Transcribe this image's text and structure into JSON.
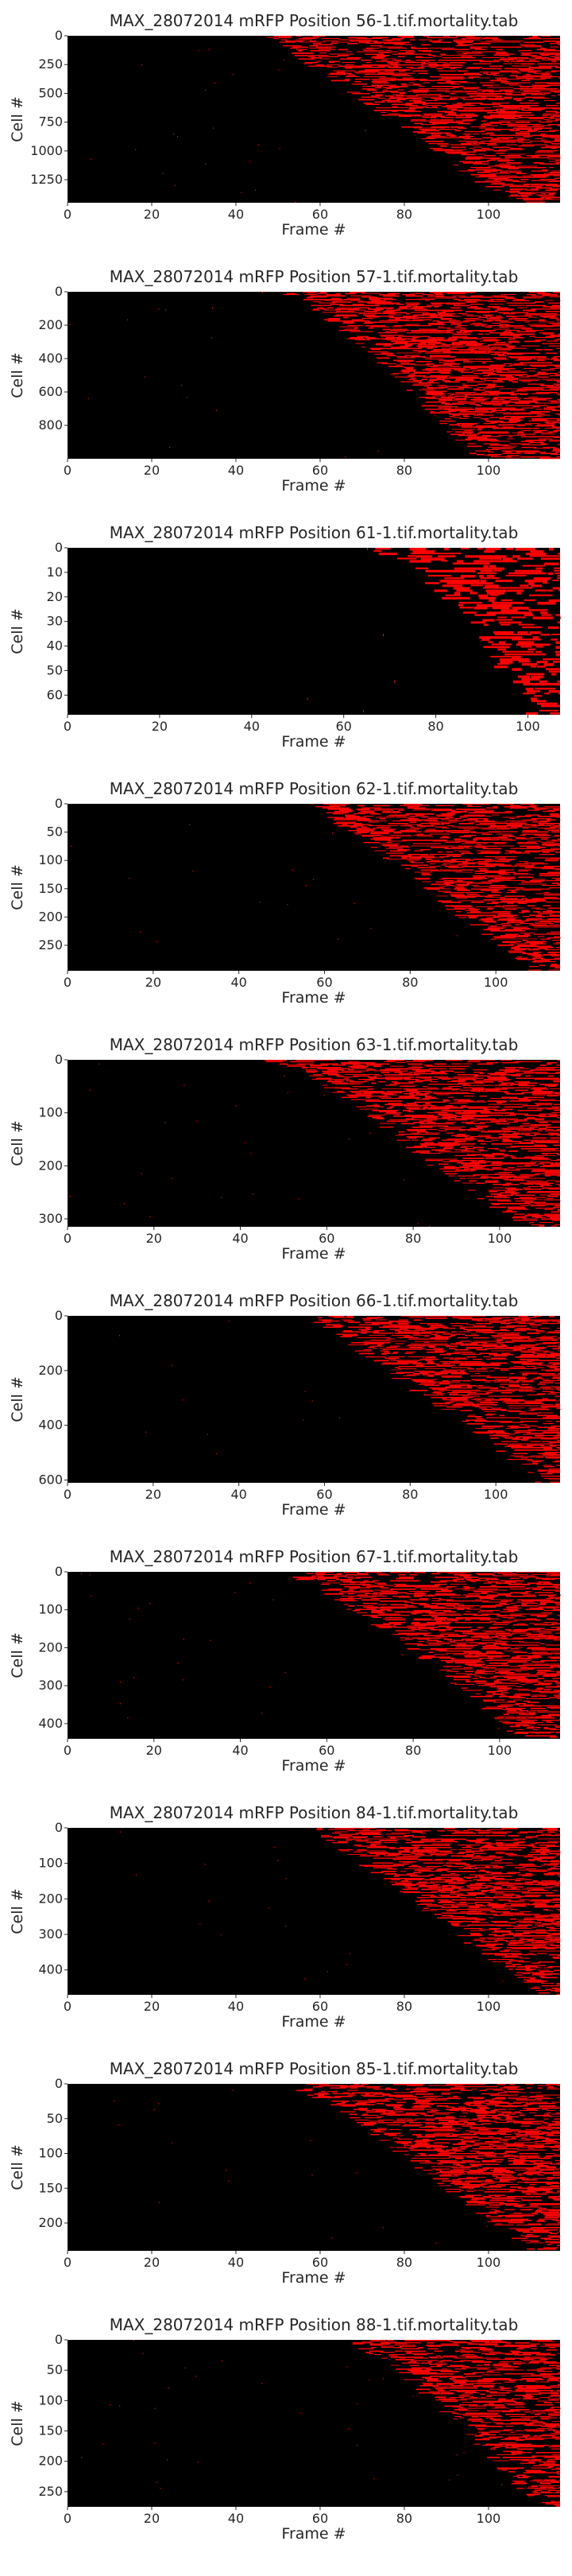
{
  "figure": {
    "background": "#ffffff",
    "plot_background": "#000000",
    "event_color": "#ff0000"
  },
  "chart_data": [
    {
      "type": "heatmap",
      "title": "MAX_28072014 mRFP Position 56-1.tif.mortality.tab",
      "xlabel": "Frame #",
      "ylabel": "Cell #",
      "xlim": [
        0,
        117
      ],
      "ylim": [
        1450,
        0
      ],
      "xticks": [
        0,
        20,
        40,
        60,
        80,
        100
      ],
      "yticks": [
        0,
        250,
        500,
        750,
        1000,
        1250
      ],
      "onset": [
        [
          0,
          47
        ],
        [
          0.1,
          55
        ],
        [
          0.35,
          70
        ],
        [
          0.6,
          85
        ],
        [
          0.85,
          98
        ],
        [
          1,
          108
        ]
      ]
    },
    {
      "type": "heatmap",
      "title": "MAX_28072014 mRFP Position 57-1.tif.mortality.tab",
      "xlabel": "Frame #",
      "ylabel": "Cell #",
      "xlim": [
        0,
        117
      ],
      "ylim": [
        1000,
        0
      ],
      "xticks": [
        0,
        20,
        40,
        60,
        80,
        100
      ],
      "yticks": [
        0,
        200,
        400,
        600,
        800
      ],
      "onset": [
        [
          0,
          53
        ],
        [
          0.15,
          63
        ],
        [
          0.4,
          75
        ],
        [
          0.65,
          86
        ],
        [
          0.85,
          92
        ],
        [
          1,
          100
        ]
      ]
    },
    {
      "type": "heatmap",
      "title": "MAX_28072014 mRFP Position 61-1.tif.mortality.tab",
      "xlabel": "Frame #",
      "ylabel": "Cell #",
      "xlim": [
        0,
        107
      ],
      "ylim": [
        68,
        0
      ],
      "xticks": [
        0,
        20,
        40,
        60,
        80,
        100
      ],
      "yticks": [
        0,
        10,
        20,
        30,
        40,
        50,
        60
      ],
      "onset": [
        [
          0,
          68
        ],
        [
          0.2,
          80
        ],
        [
          0.45,
          88
        ],
        [
          0.7,
          95
        ],
        [
          1,
          102
        ]
      ]
    },
    {
      "type": "heatmap",
      "title": "MAX_28072014 mRFP Position 62-1.tif.mortality.tab",
      "xlabel": "Frame #",
      "ylabel": "Cell #",
      "xlim": [
        0,
        115
      ],
      "ylim": [
        295,
        0
      ],
      "xticks": [
        0,
        20,
        40,
        60,
        80,
        100
      ],
      "yticks": [
        0,
        50,
        100,
        150,
        200,
        250
      ],
      "onset": [
        [
          0,
          60
        ],
        [
          0.15,
          66
        ],
        [
          0.4,
          80
        ],
        [
          0.65,
          92
        ],
        [
          0.85,
          102
        ],
        [
          1,
          110
        ]
      ]
    },
    {
      "type": "heatmap",
      "title": "MAX_28072014 mRFP Position 63-1.tif.mortality.tab",
      "xlabel": "Frame #",
      "ylabel": "Cell #",
      "xlim": [
        0,
        114
      ],
      "ylim": [
        315,
        0
      ],
      "xticks": [
        0,
        20,
        40,
        60,
        80,
        100
      ],
      "yticks": [
        0,
        100,
        200,
        300
      ],
      "onset": [
        [
          0,
          46
        ],
        [
          0.1,
          57
        ],
        [
          0.3,
          70
        ],
        [
          0.55,
          82
        ],
        [
          0.8,
          95
        ],
        [
          1,
          108
        ]
      ]
    },
    {
      "type": "heatmap",
      "title": "MAX_28072014 mRFP Position 66-1.tif.mortality.tab",
      "xlabel": "Frame #",
      "ylabel": "Cell #",
      "xlim": [
        0,
        115
      ],
      "ylim": [
        610,
        0
      ],
      "xticks": [
        0,
        20,
        40,
        60,
        80,
        100
      ],
      "yticks": [
        0,
        200,
        400,
        600
      ],
      "onset": [
        [
          0,
          58
        ],
        [
          0.15,
          66
        ],
        [
          0.4,
          80
        ],
        [
          0.65,
          95
        ],
        [
          0.85,
          105
        ],
        [
          1,
          112
        ]
      ]
    },
    {
      "type": "heatmap",
      "title": "MAX_28072014 mRFP Position 67-1.tif.mortality.tab",
      "xlabel": "Frame #",
      "ylabel": "Cell #",
      "xlim": [
        0,
        114
      ],
      "ylim": [
        440,
        0
      ],
      "xticks": [
        0,
        20,
        40,
        60,
        80,
        100
      ],
      "yticks": [
        0,
        100,
        200,
        300,
        400
      ],
      "onset": [
        [
          0,
          52
        ],
        [
          0.1,
          60
        ],
        [
          0.35,
          75
        ],
        [
          0.6,
          88
        ],
        [
          0.8,
          98
        ],
        [
          1,
          106
        ]
      ]
    },
    {
      "type": "heatmap",
      "title": "MAX_28072014 mRFP Position 84-1.tif.mortality.tab",
      "xlabel": "Frame #",
      "ylabel": "Cell #",
      "xlim": [
        0,
        117
      ],
      "ylim": [
        470,
        0
      ],
      "xticks": [
        0,
        20,
        40,
        60,
        80,
        100
      ],
      "yticks": [
        0,
        100,
        200,
        300,
        400
      ],
      "onset": [
        [
          0,
          60
        ],
        [
          0.15,
          68
        ],
        [
          0.4,
          82
        ],
        [
          0.65,
          95
        ],
        [
          0.85,
          106
        ],
        [
          1,
          114
        ]
      ]
    },
    {
      "type": "heatmap",
      "title": "MAX_28072014 mRFP Position 85-1.tif.mortality.tab",
      "xlabel": "Frame #",
      "ylabel": "Cell #",
      "xlim": [
        0,
        117
      ],
      "ylim": [
        240,
        0
      ],
      "xticks": [
        0,
        20,
        40,
        60,
        80,
        100
      ],
      "yticks": [
        0,
        50,
        100,
        150,
        200
      ],
      "onset": [
        [
          0,
          54
        ],
        [
          0.15,
          66
        ],
        [
          0.4,
          80
        ],
        [
          0.65,
          92
        ],
        [
          0.85,
          104
        ],
        [
          1,
          112
        ]
      ]
    },
    {
      "type": "heatmap",
      "title": "MAX_28072014 mRFP Position 88-1.tif.mortality.tab",
      "xlabel": "Frame #",
      "ylabel": "Cell #",
      "xlim": [
        0,
        117
      ],
      "ylim": [
        275,
        0
      ],
      "xticks": [
        0,
        20,
        40,
        60,
        80,
        100
      ],
      "yticks": [
        0,
        50,
        100,
        150,
        200,
        250
      ],
      "onset": [
        [
          0,
          68
        ],
        [
          0.15,
          78
        ],
        [
          0.4,
          90
        ],
        [
          0.65,
          100
        ],
        [
          0.85,
          108
        ],
        [
          1,
          114
        ]
      ]
    }
  ]
}
